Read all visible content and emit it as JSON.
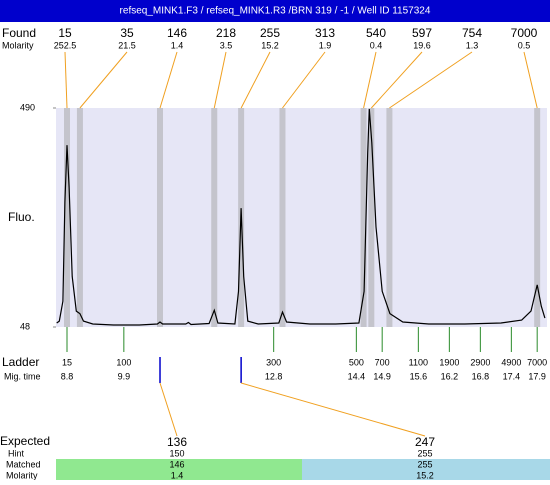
{
  "header": {
    "title": "refseq_MINK1.F3 / refseq_MINK1.R3 /BRN 319 / -1 / Well ID 1157324"
  },
  "labels": {
    "found": "Found",
    "molarity": "Molarity",
    "fluo": "Fluo.",
    "ladder": "Ladder",
    "mig_time": "Mig. time",
    "expected": "Expected",
    "hint": "Hint",
    "matched": "Matched",
    "molarity_row": "Molarity"
  },
  "chart_data": {
    "type": "line",
    "color": "#000000",
    "xlim": [
      8.587,
      18.09
    ],
    "ylim": [
      48,
      490
    ],
    "yticks": [
      48,
      490
    ],
    "x": [
      8.6,
      8.65,
      8.72,
      8.76,
      8.8,
      8.84,
      8.9,
      8.98,
      9.05,
      9.12,
      9.3,
      9.7,
      10.2,
      10.55,
      10.6,
      10.65,
      11.1,
      11.15,
      11.2,
      11.55,
      11.65,
      11.72,
      12.05,
      12.12,
      12.17,
      12.22,
      12.3,
      12.5,
      12.9,
      12.97,
      13.05,
      13.5,
      14.0,
      14.45,
      14.55,
      14.62,
      14.65,
      14.7,
      14.78,
      14.9,
      15.05,
      15.3,
      15.8,
      16.5,
      17.2,
      17.6,
      17.78,
      17.9,
      17.98,
      18.05
    ],
    "y": [
      56,
      60,
      100,
      300,
      415,
      330,
      150,
      80,
      75,
      60,
      54,
      52,
      52,
      54,
      58,
      54,
      54,
      57,
      53,
      55,
      82,
      56,
      54,
      120,
      288,
      150,
      60,
      54,
      56,
      78,
      58,
      54,
      54,
      56,
      120,
      400,
      488,
      420,
      250,
      120,
      75,
      58,
      54,
      54,
      56,
      62,
      80,
      133,
      90,
      66
    ]
  },
  "found": [
    {
      "size": 15,
      "molarity": 252.5,
      "time": 8.8
    },
    {
      "size": 35,
      "molarity": 21.5,
      "time": 9.05
    },
    {
      "size": 146,
      "molarity": 1.4,
      "time": 10.6
    },
    {
      "size": 218,
      "molarity": 3.5,
      "time": 11.65
    },
    {
      "size": 255,
      "molarity": 15.2,
      "time": 12.17
    },
    {
      "size": 313,
      "molarity": 1.9,
      "time": 12.97
    },
    {
      "size": 540,
      "molarity": 0.4,
      "time": 14.54
    },
    {
      "size": 597,
      "molarity": 19.6,
      "time": 14.69
    },
    {
      "size": 754,
      "molarity": 1.3,
      "time": 15.04
    },
    {
      "size": 7000,
      "molarity": 0.5,
      "time": 17.9
    }
  ],
  "ladder": [
    {
      "size": 15,
      "time": 8.8
    },
    {
      "size": 100,
      "time": 9.9
    },
    {
      "size": 300,
      "time": 12.8
    },
    {
      "size": 500,
      "time": 14.4
    },
    {
      "size": 700,
      "time": 14.9
    },
    {
      "size": 1100,
      "time": 15.6
    },
    {
      "size": 1900,
      "time": 16.2
    },
    {
      "size": 2900,
      "time": 16.8
    },
    {
      "size": 4900,
      "time": 17.4
    },
    {
      "size": 7000,
      "time": 17.9
    }
  ],
  "expected": [
    {
      "size": 136,
      "hint": 150,
      "matched": 146,
      "molarity": 1.4
    },
    {
      "size": 247,
      "hint": 255,
      "matched": 255,
      "molarity": 15.2
    }
  ]
}
